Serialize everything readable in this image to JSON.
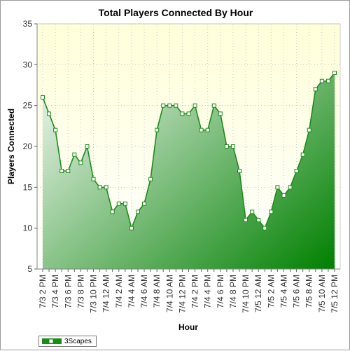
{
  "chart_data": {
    "type": "area",
    "title": "Total Players Connected By Hour",
    "xlabel": "Hour",
    "ylabel": "Players Connected",
    "ylim": [
      5,
      35
    ],
    "yticks": [
      5,
      10,
      15,
      20,
      25,
      30,
      35
    ],
    "grid": true,
    "legend_placement": "bottom-left",
    "colors": {
      "line": "#1a8c1a",
      "fill_light": "#d7ead7",
      "fill_dark": "#008000",
      "plot_bg_top": "#ffffd9",
      "plot_bg_bottom": "#ffffff"
    },
    "x_labels": [
      "7/3 2 PM",
      "7/3 4 PM",
      "7/3 6 PM",
      "7/3 8 PM",
      "7/3 10 PM",
      "7/4 12 AM",
      "7/4 2 AM",
      "7/4 4 AM",
      "7/4 6 AM",
      "7/4 8 AM",
      "7/4 10 AM",
      "7/4 12 PM",
      "7/4 2 PM",
      "7/4 4 PM",
      "7/4 6 PM",
      "7/4 8 PM",
      "7/4 10 PM",
      "7/5 12 AM",
      "7/5 2 AM",
      "7/5 4 AM",
      "7/5 6 AM",
      "7/5 8 AM",
      "7/5 10 AM",
      "7/5 12 PM"
    ],
    "series": [
      {
        "name": "3Scapes",
        "values": [
          26,
          24,
          22,
          17,
          17,
          19,
          18,
          20,
          16,
          15,
          15,
          12,
          13,
          13,
          10,
          12,
          13,
          16,
          22,
          25,
          25,
          25,
          24,
          24,
          25,
          22,
          22,
          25,
          24,
          20,
          20,
          17,
          11,
          12,
          11,
          10,
          12,
          15,
          14,
          15,
          17,
          19,
          22,
          27,
          28,
          28,
          29
        ]
      }
    ]
  }
}
